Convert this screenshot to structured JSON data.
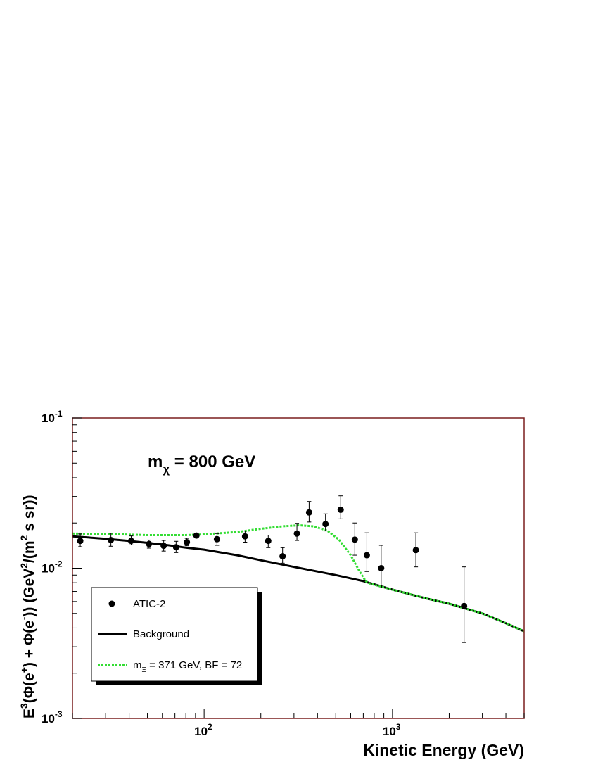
{
  "chart_data": {
    "type": "scatter",
    "title": "",
    "annotation": {
      "base": "m",
      "sub": "χ",
      "rest": " = 800 GeV"
    },
    "xlabel": "Kinetic Energy (GeV)",
    "ylabel": {
      "parts": [
        {
          "t": "E"
        },
        {
          "t": "3",
          "sup": true
        },
        {
          "t": "(Φ(e"
        },
        {
          "t": "+",
          "sup": true
        },
        {
          "t": ") + Φ(e"
        },
        {
          "t": "-",
          "sup": true
        },
        {
          "t": ")) (GeV"
        },
        {
          "t": "2",
          "sup": true
        },
        {
          "t": "/(m"
        },
        {
          "t": "2",
          "sup": true
        },
        {
          "t": " s sr))"
        }
      ]
    },
    "x_scale": "log",
    "y_scale": "log",
    "xlim": [
      20,
      5000
    ],
    "ylim": [
      0.001,
      0.1
    ],
    "x_ticks": [
      {
        "value": 100,
        "base": "10",
        "exp": "2"
      },
      {
        "value": 1000,
        "base": "10",
        "exp": "3"
      }
    ],
    "y_ticks": [
      {
        "value": 0.1,
        "base": "10",
        "exp": "-1"
      },
      {
        "value": 0.01,
        "base": "10",
        "exp": "-2"
      },
      {
        "value": 0.001,
        "base": "10",
        "exp": "-3"
      }
    ],
    "grid": false,
    "legend_position": "bottom-left",
    "series": [
      {
        "name": "ATIC-2",
        "kind": "points",
        "color": "#000000",
        "points": [
          {
            "x": 22,
            "y": 0.0152,
            "lo": 0.0139,
            "hi": 0.0169
          },
          {
            "x": 32,
            "y": 0.0154,
            "lo": 0.014,
            "hi": 0.0171
          },
          {
            "x": 41,
            "y": 0.0152,
            "lo": 0.0143,
            "hi": 0.0164
          },
          {
            "x": 51,
            "y": 0.0145,
            "lo": 0.0136,
            "hi": 0.0154
          },
          {
            "x": 61,
            "y": 0.0141,
            "lo": 0.013,
            "hi": 0.0153
          },
          {
            "x": 71,
            "y": 0.0138,
            "lo": 0.0127,
            "hi": 0.0151
          },
          {
            "x": 81,
            "y": 0.0149,
            "lo": 0.0141,
            "hi": 0.0158
          },
          {
            "x": 91,
            "y": 0.0165,
            "lo": 0.016,
            "hi": 0.0171
          },
          {
            "x": 117,
            "y": 0.0156,
            "lo": 0.0142,
            "hi": 0.017
          },
          {
            "x": 165,
            "y": 0.0163,
            "lo": 0.0149,
            "hi": 0.0177
          },
          {
            "x": 219,
            "y": 0.0152,
            "lo": 0.0137,
            "hi": 0.0166
          },
          {
            "x": 261,
            "y": 0.012,
            "lo": 0.0108,
            "hi": 0.0137
          },
          {
            "x": 311,
            "y": 0.017,
            "lo": 0.0153,
            "hi": 0.0199
          },
          {
            "x": 361,
            "y": 0.0235,
            "lo": 0.0203,
            "hi": 0.0278
          },
          {
            "x": 441,
            "y": 0.0197,
            "lo": 0.0177,
            "hi": 0.023
          },
          {
            "x": 531,
            "y": 0.0245,
            "lo": 0.0213,
            "hi": 0.0303
          },
          {
            "x": 631,
            "y": 0.0155,
            "lo": 0.0122,
            "hi": 0.02
          },
          {
            "x": 731,
            "y": 0.0122,
            "lo": 0.0095,
            "hi": 0.0172
          },
          {
            "x": 871,
            "y": 0.01,
            "lo": 0.0074,
            "hi": 0.0142
          },
          {
            "x": 1331,
            "y": 0.0132,
            "lo": 0.0102,
            "hi": 0.0172
          },
          {
            "x": 2400,
            "y": 0.0056,
            "lo": 0.0032,
            "hi": 0.0102
          }
        ]
      },
      {
        "name": "Background",
        "kind": "line",
        "color": "#000000",
        "points": [
          {
            "x": 20,
            "y": 0.0163
          },
          {
            "x": 30,
            "y": 0.0157
          },
          {
            "x": 40,
            "y": 0.0152
          },
          {
            "x": 60,
            "y": 0.0144
          },
          {
            "x": 80,
            "y": 0.0137
          },
          {
            "x": 100,
            "y": 0.0133
          },
          {
            "x": 150,
            "y": 0.0122
          },
          {
            "x": 200,
            "y": 0.0113
          },
          {
            "x": 300,
            "y": 0.0102
          },
          {
            "x": 500,
            "y": 0.009
          },
          {
            "x": 700,
            "y": 0.0082
          },
          {
            "x": 1000,
            "y": 0.0072
          },
          {
            "x": 1500,
            "y": 0.0063
          },
          {
            "x": 2000,
            "y": 0.0058
          },
          {
            "x": 3000,
            "y": 0.005
          },
          {
            "x": 4000,
            "y": 0.0043
          },
          {
            "x": 5000,
            "y": 0.0038
          }
        ]
      },
      {
        "name_parts": {
          "base": "m",
          "sub": "Ξ",
          "rest": " = 371 GeV, BF = 72"
        },
        "kind": "line",
        "dashed": true,
        "color": "#33dd33",
        "points": [
          {
            "x": 20,
            "y": 0.017
          },
          {
            "x": 30,
            "y": 0.0169
          },
          {
            "x": 50,
            "y": 0.0166
          },
          {
            "x": 80,
            "y": 0.0166
          },
          {
            "x": 100,
            "y": 0.0168
          },
          {
            "x": 150,
            "y": 0.0174
          },
          {
            "x": 200,
            "y": 0.0183
          },
          {
            "x": 260,
            "y": 0.019
          },
          {
            "x": 320,
            "y": 0.0193
          },
          {
            "x": 380,
            "y": 0.019
          },
          {
            "x": 450,
            "y": 0.0178
          },
          {
            "x": 520,
            "y": 0.0155
          },
          {
            "x": 600,
            "y": 0.0122
          },
          {
            "x": 660,
            "y": 0.0098
          },
          {
            "x": 720,
            "y": 0.0082
          },
          {
            "x": 760,
            "y": 0.0079
          },
          {
            "x": 1000,
            "y": 0.0072
          },
          {
            "x": 1500,
            "y": 0.0063
          },
          {
            "x": 2000,
            "y": 0.0058
          },
          {
            "x": 3000,
            "y": 0.005
          },
          {
            "x": 4000,
            "y": 0.0043
          },
          {
            "x": 5000,
            "y": 0.0038
          }
        ]
      }
    ],
    "frame_color": "#7a1e1e"
  }
}
